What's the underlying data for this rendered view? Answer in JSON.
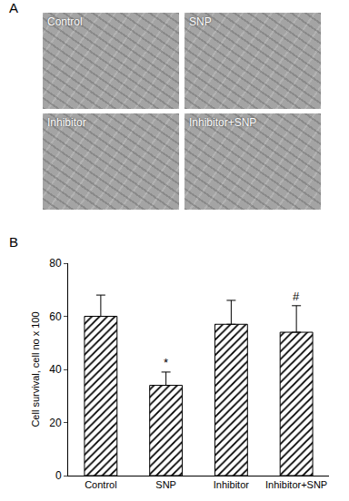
{
  "panel_labels": [
    "A",
    "B"
  ],
  "images": [
    "Control",
    "SNP",
    "Inhibitor",
    "Inhibitor+SNP"
  ],
  "chart_data": {
    "type": "bar",
    "y_label": "Cell survival, cell no x 100",
    "categories": [
      "Control",
      "SNP",
      "Inhibitor",
      "Inhibitor+SNP"
    ],
    "values": [
      60,
      34,
      57,
      54
    ],
    "errors": [
      8,
      5,
      9,
      10
    ],
    "color": "#000000",
    "ylim": [
      0,
      80
    ],
    "yticks": [
      0,
      20,
      40,
      60,
      80
    ],
    "grid": false,
    "annotations": [
      {
        "text": "*",
        "category": "SNP"
      },
      {
        "text": "#",
        "category": "Inhibitor+SNP"
      }
    ]
  }
}
